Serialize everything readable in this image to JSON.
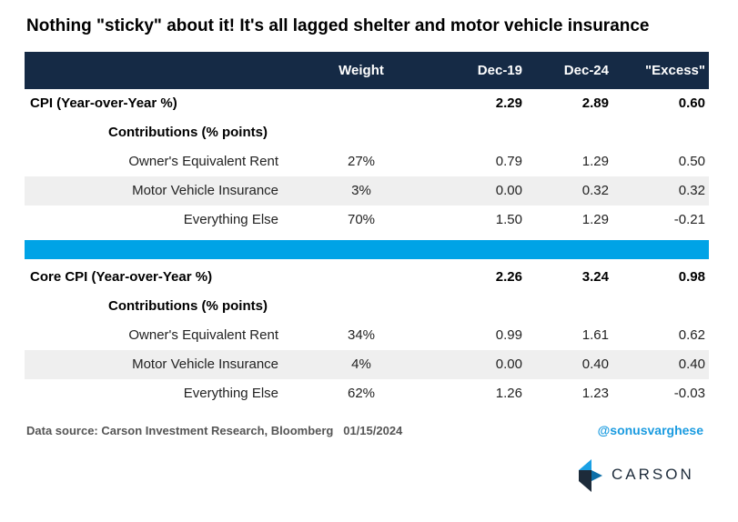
{
  "title": "Nothing \"sticky\" about it! It's all lagged shelter and motor vehicle insurance",
  "table": {
    "headers": {
      "weight": "Weight",
      "dec19": "Dec-19",
      "dec24": "Dec-24",
      "excess": "\"Excess\""
    },
    "cpi": {
      "label": "CPI (Year-over-Year %)",
      "dec19": "2.29",
      "dec24": "2.89",
      "excess": "0.60",
      "contrib_label": "Contributions (% points)",
      "rows": [
        {
          "label": "Owner's Equivalent Rent",
          "weight": "27%",
          "dec19": "0.79",
          "dec24": "1.29",
          "excess": "0.50"
        },
        {
          "label": "Motor Vehicle Insurance",
          "weight": "3%",
          "dec19": "0.00",
          "dec24": "0.32",
          "excess": "0.32"
        },
        {
          "label": "Everything Else",
          "weight": "70%",
          "dec19": "1.50",
          "dec24": "1.29",
          "excess": "-0.21"
        }
      ]
    },
    "core": {
      "label": "Core CPI (Year-over-Year %)",
      "dec19": "2.26",
      "dec24": "3.24",
      "excess": "0.98",
      "contrib_label": "Contributions (% points)",
      "rows": [
        {
          "label": "Owner's Equivalent Rent",
          "weight": "34%",
          "dec19": "0.99",
          "dec24": "1.61",
          "excess": "0.62"
        },
        {
          "label": "Motor Vehicle Insurance",
          "weight": "4%",
          "dec19": "0.00",
          "dec24": "0.40",
          "excess": "0.40"
        },
        {
          "label": "Everything Else",
          "weight": "62%",
          "dec19": "1.26",
          "dec24": "1.23",
          "excess": "-0.03"
        }
      ]
    }
  },
  "footer": {
    "source": "Data source: Carson Investment Research, Bloomberg   01/15/2024",
    "handle": "@sonusvarghese"
  },
  "logo": {
    "text": "CARSON"
  },
  "colors": {
    "header_bg": "#152a45",
    "divider": "#00a3e6",
    "handle": "#1a9be0",
    "shaded_row": "#efefef"
  }
}
